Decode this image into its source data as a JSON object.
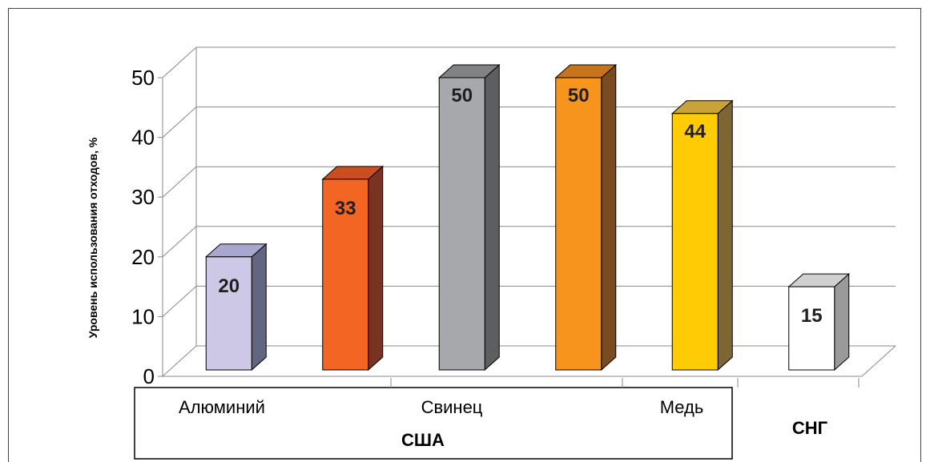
{
  "chart_data": {
    "type": "bar",
    "ylabel": "Уровень использования отходов, %",
    "ylim": [
      0,
      50
    ],
    "y_ticks": [
      "0",
      "10",
      "20",
      "30",
      "40",
      "50"
    ],
    "grid": true,
    "bars": [
      {
        "group": "США",
        "value": 20,
        "label": "20",
        "color": "#ccc8e6",
        "side": "#636680",
        "top": "#a9a7cf"
      },
      {
        "group": "США",
        "value": 33,
        "label": "33",
        "color": "#f26522",
        "side": "#7a3320",
        "top": "#c9501e"
      },
      {
        "group": "США",
        "value": 50,
        "label": "50",
        "color": "#a6a8ab",
        "side": "#5e5e60",
        "top": "#818284"
      },
      {
        "group": "США",
        "value": 50,
        "label": "50",
        "color": "#f7941d",
        "side": "#7a4a20",
        "top": "#c8741c"
      },
      {
        "group": "США",
        "value": 44,
        "label": "44",
        "color": "#ffcb05",
        "side": "#7d6633",
        "top": "#c9a23a"
      },
      {
        "group": "СНГ",
        "value": 15,
        "label": "15",
        "color": "#ffffff",
        "side": "#9a9a9a",
        "top": "#d0d0d0"
      }
    ],
    "category_labels": [
      "Алюминий",
      "Свинец",
      "Медь"
    ],
    "group_labels": [
      "США",
      "СНГ"
    ]
  }
}
